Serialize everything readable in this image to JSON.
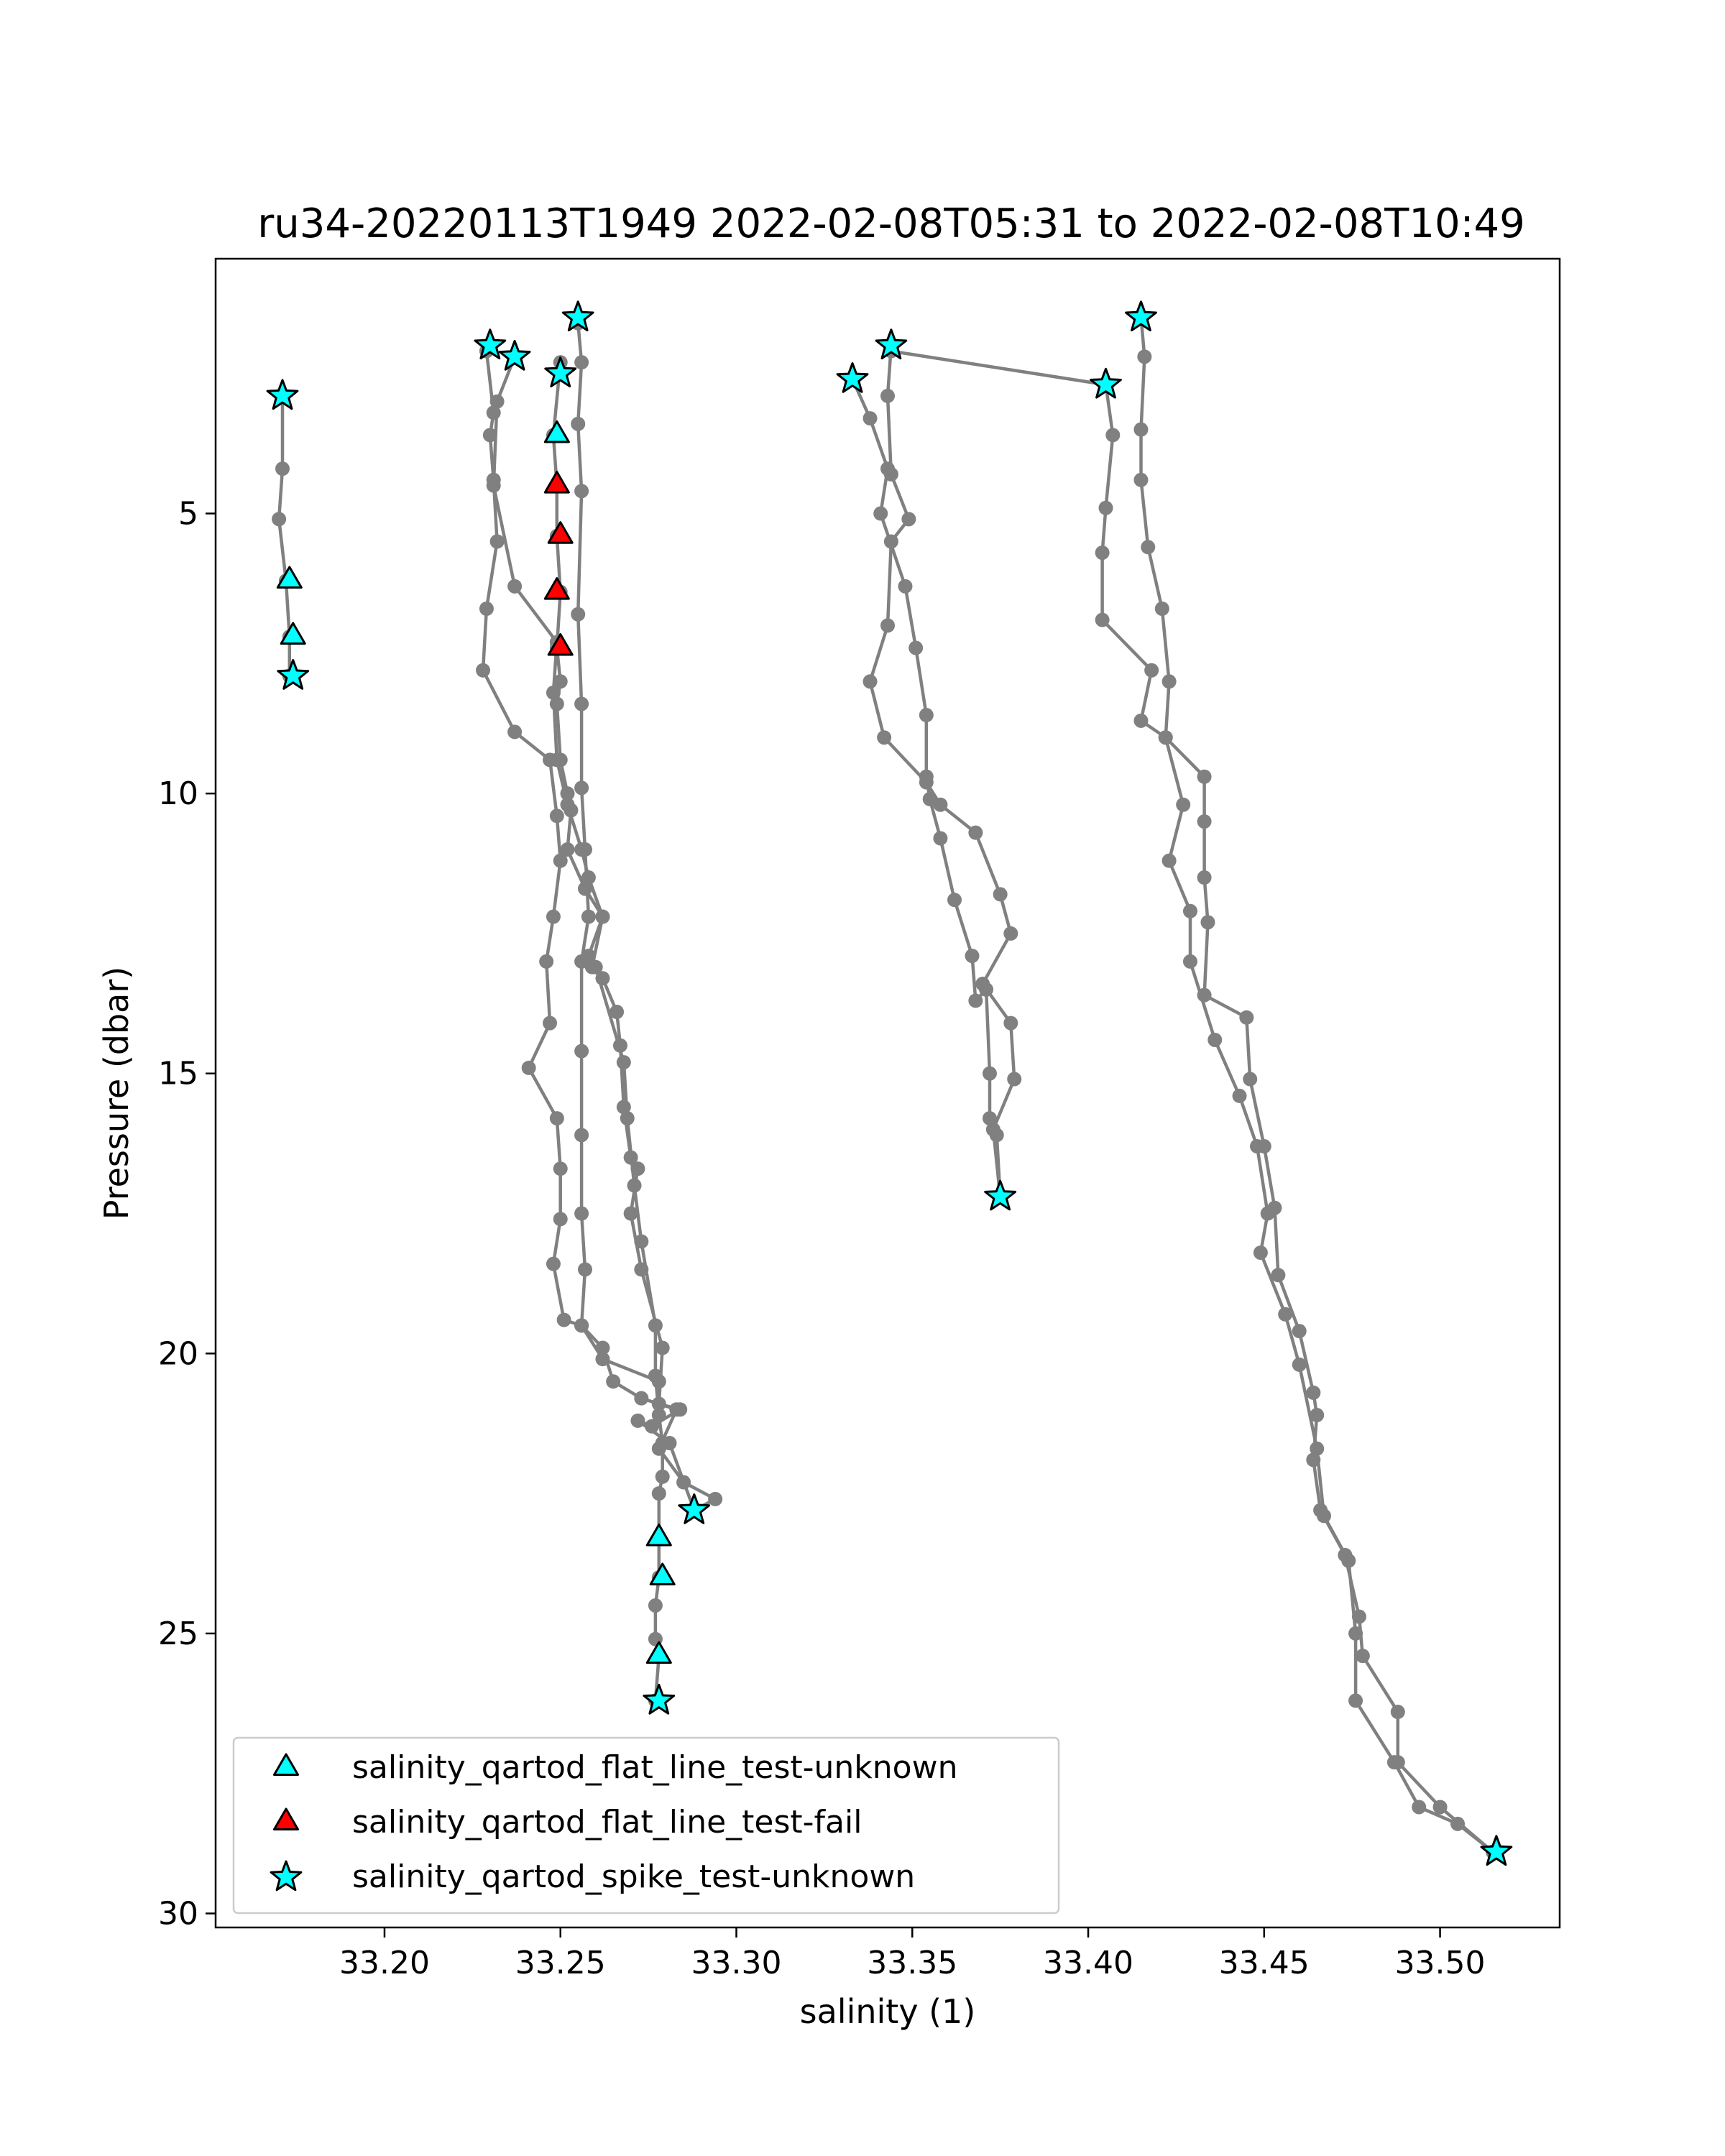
{
  "chart_data": {
    "type": "scatter",
    "title": "ru34-20220113T1949 2022-02-08T05:31 to 2022-02-08T10:49",
    "xlabel": "salinity (1)",
    "ylabel": "Pressure (dbar)",
    "xlim": [
      33.152,
      33.534
    ],
    "ylim": [
      30.25,
      0.45
    ],
    "y_inverted": true,
    "grid": false,
    "legend_position": "lower-left",
    "x_ticks": [
      33.2,
      33.25,
      33.3,
      33.35,
      33.4,
      33.45,
      33.5
    ],
    "x_tick_labels": [
      "33.20",
      "33.25",
      "33.30",
      "33.35",
      "33.40",
      "33.45",
      "33.50"
    ],
    "y_ticks": [
      5,
      10,
      15,
      20,
      25,
      30
    ],
    "y_tick_labels": [
      "5",
      "10",
      "15",
      "20",
      "25",
      "30"
    ],
    "colors": {
      "profile_line": "#808080",
      "flat_line_unknown": "#00ffff",
      "flat_line_fail": "#ff0000",
      "spike_unknown": "#00ffff",
      "marker_edge": "#000000"
    },
    "profiles": [
      {
        "points": [
          [
            33.171,
            2.9
          ],
          [
            33.171,
            4.2
          ],
          [
            33.17,
            5.1
          ],
          [
            33.172,
            6.2
          ],
          [
            33.173,
            7.2
          ],
          [
            33.173,
            7.9
          ]
        ]
      },
      {
        "points": [
          [
            33.229,
            2.1
          ],
          [
            33.231,
            3.2
          ],
          [
            33.23,
            3.6
          ],
          [
            33.231,
            4.4
          ],
          [
            33.232,
            5.5
          ],
          [
            33.229,
            6.7
          ],
          [
            33.228,
            7.8
          ],
          [
            33.237,
            8.9
          ],
          [
            33.247,
            9.4
          ],
          [
            33.249,
            10.4
          ],
          [
            33.25,
            11.2
          ],
          [
            33.248,
            12.2
          ],
          [
            33.246,
            13.0
          ],
          [
            33.247,
            14.1
          ],
          [
            33.241,
            14.9
          ],
          [
            33.249,
            15.8
          ],
          [
            33.25,
            16.7
          ],
          [
            33.25,
            17.6
          ],
          [
            33.248,
            18.4
          ],
          [
            33.251,
            19.4
          ],
          [
            33.256,
            19.5
          ],
          [
            33.262,
            20.1
          ],
          [
            33.278,
            20.5
          ]
        ]
      },
      {
        "points": [
          [
            33.237,
            2.2
          ],
          [
            33.232,
            3.0
          ],
          [
            33.231,
            4.5
          ],
          [
            33.237,
            6.3
          ],
          [
            33.249,
            7.3
          ],
          [
            33.248,
            8.2
          ],
          [
            33.249,
            9.4
          ],
          [
            33.252,
            10.2
          ],
          [
            33.256,
            11.0
          ],
          [
            33.258,
            11.5
          ],
          [
            33.262,
            12.2
          ],
          [
            33.259,
            13.1
          ],
          [
            33.262,
            13.3
          ],
          [
            33.266,
            13.9
          ],
          [
            33.267,
            14.5
          ],
          [
            33.268,
            15.6
          ],
          [
            33.27,
            16.5
          ],
          [
            33.272,
            16.7
          ],
          [
            33.27,
            17.5
          ],
          [
            33.273,
            18.5
          ],
          [
            33.279,
            19.9
          ],
          [
            33.278,
            20.9
          ],
          [
            33.284,
            21.0
          ],
          [
            33.276,
            21.3
          ],
          [
            33.272,
            21.2
          ],
          [
            33.281,
            21.6
          ],
          [
            33.288,
            22.8
          ]
        ]
      },
      {
        "points": [
          [
            33.255,
            1.6
          ],
          [
            33.256,
            2.3
          ],
          [
            33.255,
            3.4
          ],
          [
            33.256,
            4.6
          ],
          [
            33.255,
            6.8
          ],
          [
            33.256,
            8.4
          ],
          [
            33.256,
            9.9
          ],
          [
            33.257,
            11.0
          ],
          [
            33.258,
            12.2
          ],
          [
            33.256,
            13.0
          ],
          [
            33.256,
            14.6
          ],
          [
            33.256,
            16.1
          ],
          [
            33.256,
            17.5
          ],
          [
            33.257,
            18.5
          ],
          [
            33.256,
            19.5
          ],
          [
            33.262,
            19.9
          ],
          [
            33.265,
            20.5
          ],
          [
            33.273,
            20.8
          ],
          [
            33.283,
            21.0
          ],
          [
            33.278,
            21.7
          ],
          [
            33.285,
            22.3
          ],
          [
            33.294,
            22.6
          ],
          [
            33.288,
            22.8
          ]
        ]
      },
      {
        "points": [
          [
            33.25,
            2.3
          ],
          [
            33.248,
            3.6
          ],
          [
            33.249,
            4.5
          ],
          [
            33.249,
            5.4
          ],
          [
            33.25,
            6.4
          ],
          [
            33.249,
            7.4
          ],
          [
            33.25,
            8.0
          ],
          [
            33.249,
            8.4
          ],
          [
            33.25,
            9.4
          ],
          [
            33.252,
            10.0
          ],
          [
            33.253,
            10.3
          ],
          [
            33.252,
            11.0
          ],
          [
            33.257,
            11.7
          ],
          [
            33.262,
            12.2
          ],
          [
            33.258,
            12.9
          ],
          [
            33.26,
            13.1
          ],
          [
            33.268,
            14.8
          ],
          [
            33.269,
            15.8
          ],
          [
            33.271,
            17.0
          ],
          [
            33.273,
            18.0
          ],
          [
            33.277,
            19.5
          ],
          [
            33.277,
            20.4
          ],
          [
            33.278,
            21.1
          ],
          [
            33.279,
            21.6
          ],
          [
            33.279,
            22.2
          ],
          [
            33.278,
            22.5
          ],
          [
            33.278,
            23.3
          ],
          [
            33.278,
            24.0
          ],
          [
            33.277,
            24.5
          ],
          [
            33.277,
            25.1
          ],
          [
            33.278,
            25.4
          ],
          [
            33.277,
            26.2
          ]
        ]
      },
      {
        "points": [
          [
            33.333,
            2.6
          ],
          [
            33.338,
            3.3
          ],
          [
            33.343,
            4.2
          ],
          [
            33.341,
            5.0
          ],
          [
            33.348,
            6.3
          ],
          [
            33.351,
            7.4
          ],
          [
            33.354,
            8.6
          ],
          [
            33.354,
            9.7
          ],
          [
            33.355,
            10.1
          ],
          [
            33.358,
            10.8
          ],
          [
            33.362,
            11.9
          ],
          [
            33.367,
            12.9
          ],
          [
            33.368,
            13.7
          ],
          [
            33.371,
            13.5
          ],
          [
            33.372,
            15.0
          ],
          [
            33.372,
            15.8
          ],
          [
            33.374,
            16.1
          ],
          [
            33.375,
            17.2
          ]
        ]
      },
      {
        "points": [
          [
            33.344,
            2.0
          ],
          [
            33.343,
            2.9
          ],
          [
            33.344,
            4.3
          ],
          [
            33.349,
            5.1
          ],
          [
            33.344,
            5.5
          ],
          [
            33.343,
            7.0
          ],
          [
            33.338,
            8.0
          ],
          [
            33.342,
            9.0
          ],
          [
            33.354,
            9.8
          ],
          [
            33.358,
            10.2
          ],
          [
            33.368,
            10.7
          ],
          [
            33.375,
            11.8
          ],
          [
            33.378,
            12.5
          ],
          [
            33.37,
            13.4
          ],
          [
            33.378,
            14.1
          ],
          [
            33.379,
            15.1
          ],
          [
            33.373,
            16.0
          ],
          [
            33.375,
            17.2
          ]
        ]
      },
      {
        "points": [
          [
            33.344,
            2.1
          ],
          [
            33.405,
            2.7
          ]
        ]
      },
      {
        "points": [
          [
            33.405,
            2.7
          ],
          [
            33.407,
            3.6
          ],
          [
            33.405,
            4.9
          ],
          [
            33.404,
            5.7
          ],
          [
            33.404,
            6.9
          ],
          [
            33.418,
            7.8
          ],
          [
            33.415,
            8.7
          ],
          [
            33.422,
            9.0
          ],
          [
            33.433,
            9.7
          ],
          [
            33.433,
            10.5
          ],
          [
            33.433,
            11.5
          ],
          [
            33.434,
            12.3
          ],
          [
            33.433,
            13.6
          ],
          [
            33.445,
            14.0
          ],
          [
            33.446,
            15.1
          ],
          [
            33.45,
            16.3
          ],
          [
            33.453,
            17.4
          ],
          [
            33.454,
            18.6
          ],
          [
            33.46,
            19.6
          ],
          [
            33.464,
            20.7
          ],
          [
            33.465,
            21.1
          ],
          [
            33.464,
            21.9
          ],
          [
            33.466,
            22.8
          ],
          [
            33.473,
            23.6
          ],
          [
            33.477,
            24.7
          ],
          [
            33.478,
            25.4
          ],
          [
            33.488,
            26.4
          ],
          [
            33.488,
            27.3
          ],
          [
            33.5,
            28.1
          ],
          [
            33.515,
            28.9
          ]
        ]
      },
      {
        "points": [
          [
            33.415,
            1.5
          ],
          [
            33.416,
            2.2
          ],
          [
            33.415,
            3.5
          ],
          [
            33.415,
            4.4
          ],
          [
            33.417,
            5.6
          ],
          [
            33.421,
            6.7
          ],
          [
            33.423,
            8.0
          ],
          [
            33.422,
            9.0
          ],
          [
            33.427,
            10.2
          ],
          [
            33.423,
            11.2
          ],
          [
            33.429,
            12.1
          ],
          [
            33.429,
            13.0
          ],
          [
            33.436,
            14.4
          ],
          [
            33.443,
            15.4
          ],
          [
            33.448,
            16.3
          ],
          [
            33.451,
            17.5
          ],
          [
            33.449,
            18.2
          ],
          [
            33.456,
            19.3
          ],
          [
            33.46,
            20.2
          ],
          [
            33.465,
            21.7
          ],
          [
            33.467,
            22.9
          ],
          [
            33.474,
            23.7
          ],
          [
            33.476,
            25.0
          ],
          [
            33.476,
            26.2
          ],
          [
            33.487,
            27.3
          ],
          [
            33.494,
            28.1
          ],
          [
            33.505,
            28.4
          ],
          [
            33.515,
            28.9
          ]
        ]
      }
    ],
    "series": [
      {
        "name": "salinity_qartod_flat_line_test-unknown",
        "marker": "triangle",
        "color": "#00ffff",
        "points": [
          [
            33.173,
            6.2
          ],
          [
            33.174,
            7.2
          ],
          [
            33.249,
            3.6
          ],
          [
            33.278,
            23.3
          ],
          [
            33.279,
            24.0
          ],
          [
            33.278,
            25.4
          ]
        ]
      },
      {
        "name": "salinity_qartod_flat_line_test-fail",
        "marker": "triangle",
        "color": "#ff0000",
        "points": [
          [
            33.249,
            4.5
          ],
          [
            33.25,
            5.4
          ],
          [
            33.249,
            6.4
          ],
          [
            33.25,
            7.4
          ]
        ]
      },
      {
        "name": "salinity_qartod_spike_test-unknown",
        "marker": "star",
        "color": "#00ffff",
        "points": [
          [
            33.171,
            2.9
          ],
          [
            33.174,
            7.9
          ],
          [
            33.23,
            2.0
          ],
          [
            33.237,
            2.2
          ],
          [
            33.255,
            1.5
          ],
          [
            33.25,
            2.5
          ],
          [
            33.288,
            22.8
          ],
          [
            33.278,
            26.2
          ],
          [
            33.344,
            2.0
          ],
          [
            33.333,
            2.6
          ],
          [
            33.415,
            1.5
          ],
          [
            33.405,
            2.7
          ],
          [
            33.375,
            17.2
          ],
          [
            33.516,
            28.9
          ]
        ]
      }
    ]
  }
}
